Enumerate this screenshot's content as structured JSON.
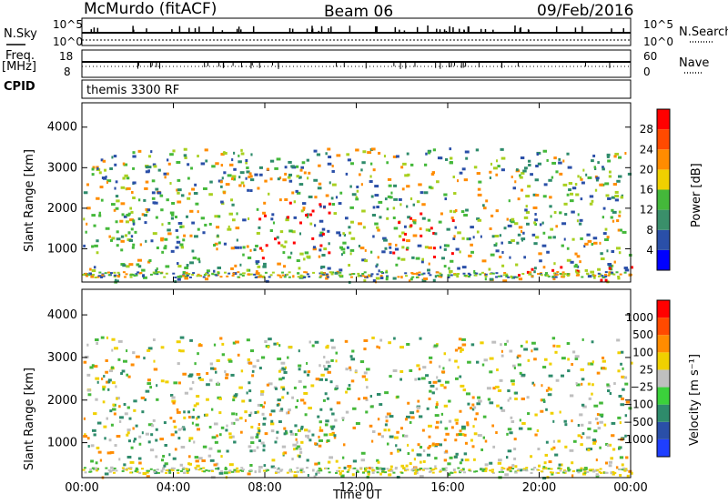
{
  "header": {
    "station": "McMurdo (fitACF)",
    "beam": "Beam 06",
    "date": "09/Feb/2016"
  },
  "status_panel": {
    "nsky_label": "N.Sky",
    "nsky_top": "10^5",
    "nsky_bottom": "10^0",
    "nsearch_label": "N.Search",
    "nsearch_top": "10^5",
    "nsearch_bottom": "10^0",
    "freq_label": "Freq.",
    "freq_unit": "[MHz]",
    "freq_top": "18",
    "freq_bottom": "8",
    "nave_label": "Nave",
    "nave_top": "60",
    "nave_bottom": "0",
    "cpid_label": "CPID",
    "cpid_value": "themis 3300 RF"
  },
  "colors": {
    "blue": "#1f3fff",
    "darkblue": "#2a4fa8",
    "teal": "#2e8b6b",
    "green": "#44b83a",
    "yellowgreen": "#a8d020",
    "yellow": "#f0d000",
    "orange": "#ff8c00",
    "redorange": "#ff4a00",
    "red": "#ff0000",
    "grey": "#bfbfbf",
    "velgreen": "#3bd13b"
  },
  "chart_data": [
    {
      "type": "heatmap",
      "title": "Power",
      "ylabel": "Slant Range [km]",
      "xlabel": "",
      "x_ticks": [
        "00:00",
        "04:00",
        "08:00",
        "12:00",
        "16:00",
        "20:00",
        "00:00"
      ],
      "y_ticks": [
        1000,
        2000,
        3000,
        4000
      ],
      "ylim": [
        180,
        4600
      ],
      "colorbar": {
        "label": "Power [dB]",
        "ticks": [
          "4",
          "8",
          "12",
          "16",
          "20",
          "24",
          "28"
        ],
        "colors": [
          "#0000ff",
          "#2a4fa8",
          "#3a8f6a",
          "#44b83a",
          "#f0d000",
          "#ff8c00",
          "#ff4a00",
          "#ff0000"
        ]
      },
      "regions": [
        {
          "t0": 0.0,
          "t1": 0.08,
          "r0": 2700,
          "r1": 3100,
          "val": "yellowgreen"
        },
        {
          "t0": 0.05,
          "t1": 0.25,
          "r0": 1000,
          "r1": 1900,
          "val": "green"
        },
        {
          "t0": 0.25,
          "t1": 0.42,
          "r0": 2400,
          "r1": 3000,
          "val": "orange"
        },
        {
          "t0": 0.32,
          "t1": 0.46,
          "r0": 800,
          "r1": 2200,
          "val": "red"
        },
        {
          "t0": 0.55,
          "t1": 0.68,
          "r0": 800,
          "r1": 1900,
          "val": "red"
        },
        {
          "t0": 0.78,
          "t1": 1.0,
          "r0": 200,
          "r1": 600,
          "val": "red"
        }
      ]
    },
    {
      "type": "heatmap",
      "title": "Velocity",
      "ylabel": "Slant Range [km]",
      "xlabel": "Time UT",
      "x_ticks": [
        "00:00",
        "04:00",
        "08:00",
        "12:00",
        "16:00",
        "20:00",
        "00:00"
      ],
      "y_ticks": [
        1000,
        2000,
        3000,
        4000
      ],
      "ylim": [
        180,
        4600
      ],
      "colorbar": {
        "label": "Velocity [m s⁻¹]",
        "ticks": [
          "1000",
          "500",
          "100",
          "25",
          "−25",
          "−100",
          "−500",
          "−1000"
        ],
        "colors": [
          "#1f3fff",
          "#2a4fa8",
          "#2e8b6b",
          "#3bd13b",
          "#bfbfbf",
          "#f0d000",
          "#ff8c00",
          "#ff4a00",
          "#ff0000"
        ]
      },
      "regions": [
        {
          "t0": 0.05,
          "t1": 0.22,
          "r0": 1000,
          "r1": 1800,
          "val": "teal"
        },
        {
          "t0": 0.3,
          "t1": 0.46,
          "r0": 800,
          "r1": 2800,
          "val": "teal"
        },
        {
          "t0": 0.55,
          "t1": 0.72,
          "r0": 800,
          "r1": 2100,
          "val": "orange"
        },
        {
          "t0": 0.46,
          "t1": 1.0,
          "r0": 200,
          "r1": 600,
          "val": "yellow"
        }
      ]
    }
  ]
}
